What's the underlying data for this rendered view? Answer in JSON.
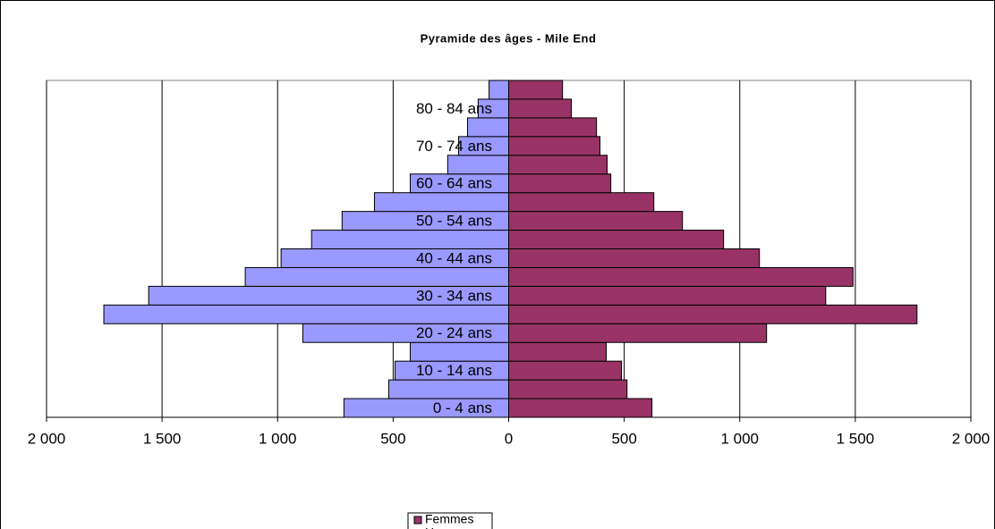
{
  "chart_data": {
    "type": "pyramid",
    "title": "Pyramide des âges - Mile End",
    "categories": [
      "0 - 4 ans",
      null,
      "10 - 14 ans",
      null,
      "20 - 24 ans",
      null,
      "30 - 34 ans",
      null,
      "40 - 44 ans",
      null,
      "50 - 54 ans",
      null,
      "60 - 64 ans",
      null,
      "70 - 74 ans",
      null,
      "80 - 84  ans",
      null
    ],
    "series": [
      {
        "name": "Femmes",
        "color": "#993366",
        "side": "right",
        "values": [
          620,
          512,
          488,
          422,
          1116,
          1767,
          1372,
          1490,
          1085,
          930,
          752,
          628,
          442,
          426,
          395,
          380,
          271,
          233
        ]
      },
      {
        "name": "Hommes",
        "color": "#9999ff",
        "side": "left",
        "values": [
          713,
          519,
          492,
          426,
          891,
          1752,
          1558,
          1140,
          985,
          853,
          721,
          581,
          426,
          264,
          217,
          178,
          132,
          85
        ]
      }
    ],
    "xlim": [
      -2000,
      2000
    ],
    "xticks": [
      {
        "value": -2000,
        "label": "2 000"
      },
      {
        "value": -1500,
        "label": "1 500"
      },
      {
        "value": -1000,
        "label": "1 000"
      },
      {
        "value": -500,
        "label": "500"
      },
      0,
      500,
      {
        "value": 1000,
        "label": "1 000"
      },
      {
        "value": 1500,
        "label": "1 500"
      },
      {
        "value": 2000,
        "label": "2 000"
      }
    ],
    "grid": true
  }
}
